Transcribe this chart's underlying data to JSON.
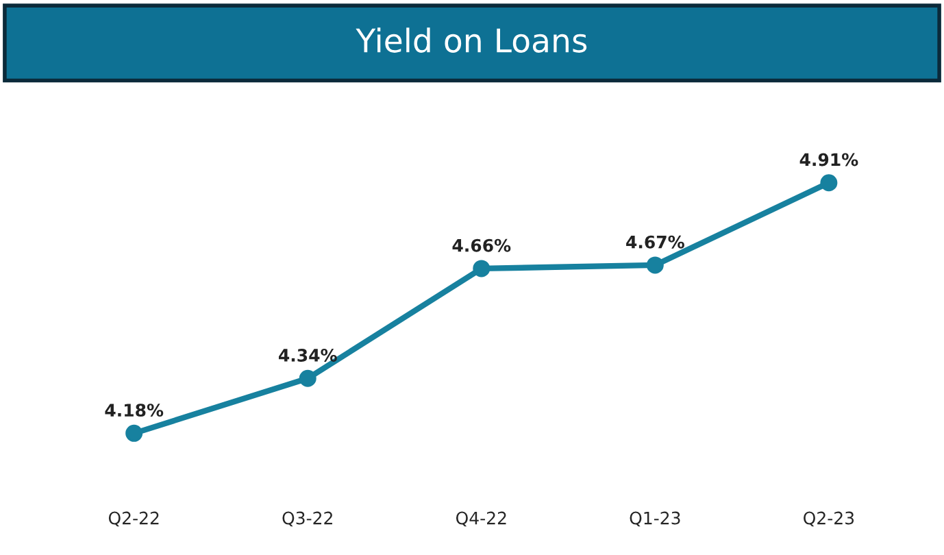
{
  "chart_data": {
    "type": "line",
    "title": "Yield on Loans",
    "categories": [
      "Q2-22",
      "Q3-22",
      "Q4-22",
      "Q1-23",
      "Q2-23"
    ],
    "series": [
      {
        "color": "#17819f",
        "values": [
          4.18,
          4.34,
          4.66,
          4.67,
          4.91
        ],
        "value_labels": [
          "4.18%",
          "4.34%",
          "4.66%",
          "4.67%",
          "4.91%"
        ]
      }
    ],
    "tick_labels": "x",
    "marker": "circle",
    "line_style": "solid",
    "grid": false,
    "legend": false
  }
}
